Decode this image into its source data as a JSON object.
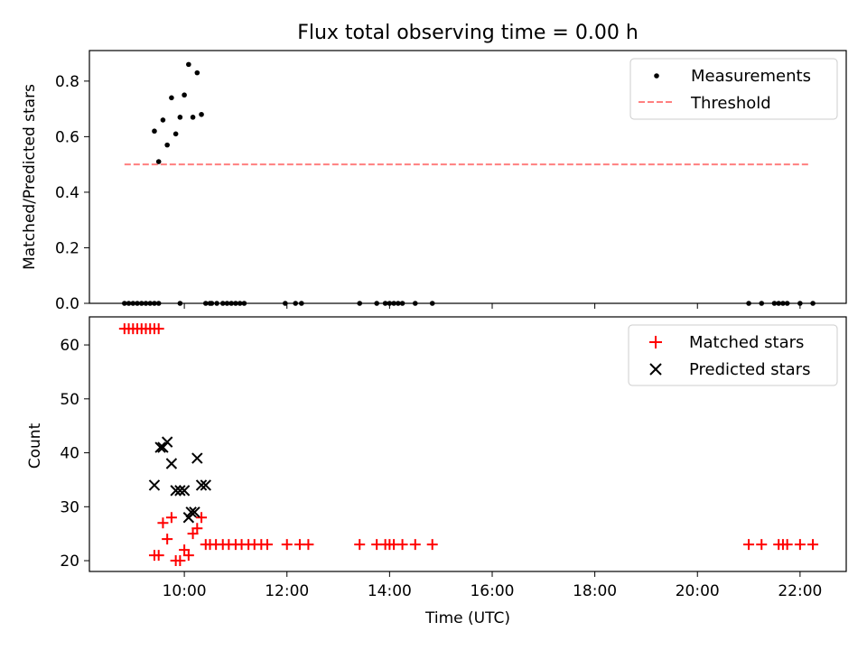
{
  "chart_data": [
    {
      "type": "scatter",
      "title": "Flux total observing time = 0.00 h",
      "xlabel": "",
      "ylabel": "Matched/Predicted stars",
      "xlim_hours": [
        8.15,
        22.9
      ],
      "ylim": [
        0,
        0.91
      ],
      "yticks": [
        0.0,
        0.2,
        0.4,
        0.6,
        0.8
      ],
      "ytick_labels": [
        "0.0",
        "0.2",
        "0.4",
        "0.6",
        "0.8"
      ],
      "xticks_hours": [
        10,
        12,
        14,
        16,
        18,
        20,
        22
      ],
      "legend_placement": "upper-right",
      "grid": false,
      "series": [
        {
          "name": "Measurements",
          "marker": "dot",
          "color": "#000000",
          "x": [
            "08:50",
            "08:55",
            "09:00",
            "09:05",
            "09:10",
            "09:15",
            "09:20",
            "09:25",
            "09:30",
            "09:25",
            "09:30",
            "09:35",
            "09:40",
            "09:45",
            "09:50",
            "09:55",
            "10:00",
            "10:05",
            "10:10",
            "10:15",
            "10:20",
            "10:25",
            "10:30",
            "09:55",
            "10:32",
            "10:38",
            "10:45",
            "10:50",
            "10:55",
            "11:00",
            "11:05",
            "11:10",
            "11:58",
            "12:10",
            "12:17",
            "13:25",
            "13:45",
            "13:55",
            "14:00",
            "14:05",
            "14:10",
            "14:15",
            "14:30",
            "14:50",
            "21:00",
            "21:15",
            "21:30",
            "21:35",
            "21:40",
            "21:45",
            "22:00",
            "22:15"
          ],
          "y": [
            0,
            0,
            0,
            0,
            0,
            0,
            0,
            0,
            0,
            0.62,
            0.51,
            0.66,
            0.57,
            0.74,
            0.61,
            0.67,
            0.75,
            0.86,
            0.67,
            0.83,
            0.68,
            0,
            0,
            0,
            0,
            0,
            0,
            0,
            0,
            0,
            0,
            0,
            0,
            0,
            0,
            0,
            0,
            0,
            0,
            0,
            0,
            0,
            0,
            0,
            0,
            0,
            0,
            0,
            0,
            0,
            0,
            0
          ]
        },
        {
          "name": "Threshold",
          "marker": "dashed-line",
          "color": "#ff7f7f",
          "x": [
            "08:50",
            "22:10"
          ],
          "y": [
            0.5,
            0.5
          ]
        }
      ]
    },
    {
      "type": "scatter",
      "title": "",
      "xlabel": "Time (UTC)",
      "ylabel": "Count",
      "xlim_hours": [
        8.15,
        22.9
      ],
      "ylim": [
        18,
        65.2
      ],
      "yticks": [
        20,
        30,
        40,
        50,
        60
      ],
      "ytick_labels": [
        "20",
        "30",
        "40",
        "50",
        "60"
      ],
      "xticks_hours": [
        10,
        12,
        14,
        16,
        18,
        20,
        22
      ],
      "xtick_labels": [
        "10:00",
        "12:00",
        "14:00",
        "16:00",
        "18:00",
        "20:00",
        "22:00"
      ],
      "legend_placement": "upper-right",
      "grid": false,
      "series": [
        {
          "name": "Matched stars",
          "marker": "plus",
          "color": "#ff0000",
          "x": [
            "08:50",
            "08:55",
            "09:00",
            "09:05",
            "09:10",
            "09:15",
            "09:20",
            "09:25",
            "09:30",
            "09:25",
            "09:30",
            "09:35",
            "09:40",
            "09:45",
            "09:50",
            "09:55",
            "10:00",
            "10:05",
            "10:10",
            "10:15",
            "10:20",
            "10:25",
            "10:30",
            "10:37",
            "10:45",
            "10:52",
            "11:00",
            "11:07",
            "11:15",
            "11:22",
            "11:30",
            "11:37",
            "12:00",
            "12:15",
            "12:25",
            "13:25",
            "13:45",
            "13:55",
            "14:00",
            "14:05",
            "14:15",
            "14:30",
            "14:50",
            "21:00",
            "21:15",
            "21:35",
            "21:40",
            "21:45",
            "22:00",
            "22:15"
          ],
          "y": [
            63,
            63,
            63,
            63,
            63,
            63,
            63,
            63,
            63,
            21,
            21,
            27,
            24,
            28,
            20,
            20,
            22,
            21,
            25,
            26,
            28,
            23,
            23,
            23,
            23,
            23,
            23,
            23,
            23,
            23,
            23,
            23,
            23,
            23,
            23,
            23,
            23,
            23,
            23,
            23,
            23,
            23,
            23,
            23,
            23,
            23,
            23,
            23,
            23,
            23
          ]
        },
        {
          "name": "Predicted stars",
          "marker": "x",
          "color": "#000000",
          "x": [
            "09:25",
            "09:32",
            "09:35",
            "09:40",
            "09:45",
            "09:50",
            "09:55",
            "10:00",
            "10:05",
            "10:08",
            "10:12",
            "10:15",
            "10:20",
            "10:25"
          ],
          "y": [
            34,
            41,
            41,
            42,
            38,
            33,
            33,
            33,
            28,
            29,
            29,
            39,
            34,
            34
          ]
        }
      ]
    }
  ]
}
